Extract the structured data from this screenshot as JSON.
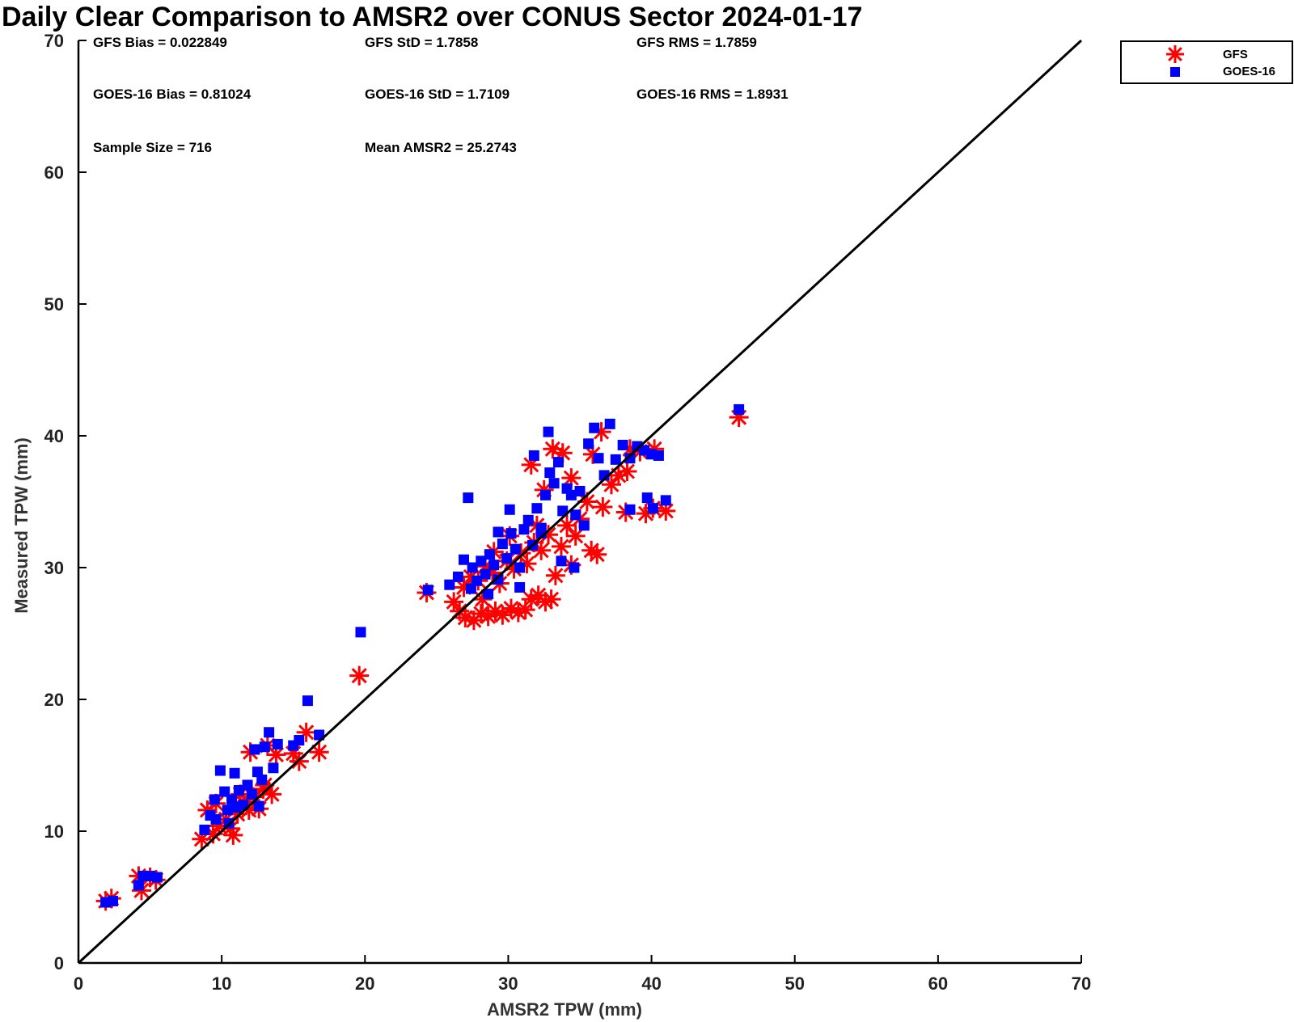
{
  "chart_data": {
    "type": "scatter",
    "title": "Daily Clear Comparison to AMSR2 over CONUS Sector 2024-01-17",
    "xlabel": "AMSR2 TPW (mm)",
    "ylabel": "Measured TPW (mm)",
    "xlim": [
      0,
      70
    ],
    "ylim": [
      0,
      70
    ],
    "xticks": [
      "0",
      "10",
      "20",
      "30",
      "40",
      "50",
      "60",
      "70"
    ],
    "yticks": [
      "0",
      "10",
      "20",
      "30",
      "40",
      "50",
      "60",
      "70"
    ],
    "reference_line": "y = x",
    "legend_position": "top-right outside",
    "stats": [
      "GFS Bias = 0.022849",
      "GFS StD = 1.7858",
      "GFS RMS = 1.7859",
      "GOES-16 Bias = 0.81024",
      "GOES-16 StD = 1.7109",
      "GOES-16 RMS = 1.8931",
      "Sample Size = 716",
      "Mean AMSR2 = 25.2743"
    ],
    "series": [
      {
        "name": "GFS",
        "marker": "asterisk",
        "color": "#ff0000",
        "points": [
          [
            1.9,
            4.7
          ],
          [
            2.3,
            4.9
          ],
          [
            4.2,
            6.6
          ],
          [
            4.4,
            5.5
          ],
          [
            5.0,
            6.5
          ],
          [
            5.4,
            6.3
          ],
          [
            8.6,
            9.4
          ],
          [
            9.0,
            11.6
          ],
          [
            9.4,
            9.8
          ],
          [
            9.8,
            10.4
          ],
          [
            10.3,
            10.9
          ],
          [
            10.8,
            9.7
          ],
          [
            11.1,
            11.3
          ],
          [
            11.5,
            12.2
          ],
          [
            11.9,
            11.6
          ],
          [
            12.2,
            12.6
          ],
          [
            12.6,
            11.7
          ],
          [
            12.9,
            13.2
          ],
          [
            13.5,
            12.8
          ],
          [
            12.0,
            16.0
          ],
          [
            13.2,
            16.5
          ],
          [
            13.8,
            15.8
          ],
          [
            15.0,
            15.9
          ],
          [
            15.4,
            15.3
          ],
          [
            15.9,
            17.5
          ],
          [
            16.8,
            16.0
          ],
          [
            9.6,
            12.1
          ],
          [
            10.6,
            10.2
          ],
          [
            11.3,
            12.8
          ],
          [
            13.0,
            13.5
          ],
          [
            19.6,
            21.8
          ],
          [
            24.3,
            28.1
          ],
          [
            26.2,
            27.4
          ],
          [
            26.6,
            26.7
          ],
          [
            27.0,
            26.2
          ],
          [
            27.6,
            26.0
          ],
          [
            28.1,
            26.5
          ],
          [
            28.6,
            26.3
          ],
          [
            29.1,
            26.7
          ],
          [
            29.6,
            26.4
          ],
          [
            30.2,
            26.9
          ],
          [
            30.7,
            26.6
          ],
          [
            31.2,
            26.8
          ],
          [
            31.6,
            27.6
          ],
          [
            32.1,
            27.9
          ],
          [
            32.6,
            27.4
          ],
          [
            33.0,
            27.6
          ],
          [
            26.9,
            28.5
          ],
          [
            27.4,
            29.3
          ],
          [
            27.9,
            29.0
          ],
          [
            28.4,
            30.1
          ],
          [
            28.9,
            29.6
          ],
          [
            29.4,
            28.8
          ],
          [
            29.9,
            30.5
          ],
          [
            30.4,
            29.9
          ],
          [
            30.9,
            31.1
          ],
          [
            31.3,
            30.3
          ],
          [
            31.8,
            31.9
          ],
          [
            32.3,
            31.3
          ],
          [
            32.8,
            32.5
          ],
          [
            33.3,
            29.4
          ],
          [
            33.7,
            31.6
          ],
          [
            34.1,
            33.2
          ],
          [
            34.4,
            30.2
          ],
          [
            34.7,
            32.4
          ],
          [
            35.0,
            33.7
          ],
          [
            35.5,
            35.0
          ],
          [
            35.8,
            31.3
          ],
          [
            36.2,
            31.0
          ],
          [
            36.6,
            34.6
          ],
          [
            37.2,
            36.3
          ],
          [
            37.7,
            37.0
          ],
          [
            38.3,
            37.3
          ],
          [
            31.6,
            37.8
          ],
          [
            32.5,
            35.9
          ],
          [
            33.1,
            39.0
          ],
          [
            33.8,
            38.7
          ],
          [
            34.4,
            36.8
          ],
          [
            35.9,
            38.6
          ],
          [
            36.5,
            40.3
          ],
          [
            38.5,
            39.0
          ],
          [
            39.2,
            38.8
          ],
          [
            40.2,
            39.0
          ],
          [
            38.2,
            34.2
          ],
          [
            39.6,
            34.1
          ],
          [
            40.1,
            34.5
          ],
          [
            41.0,
            34.3
          ],
          [
            32.0,
            33.2
          ],
          [
            30.1,
            32.4
          ],
          [
            29.0,
            31.2
          ],
          [
            28.2,
            27.6
          ],
          [
            46.1,
            41.4
          ]
        ]
      },
      {
        "name": "GOES-16",
        "marker": "square",
        "color": "#0000ff",
        "points": [
          [
            1.9,
            4.6
          ],
          [
            2.4,
            4.7
          ],
          [
            4.2,
            5.9
          ],
          [
            4.5,
            6.6
          ],
          [
            5.0,
            6.6
          ],
          [
            5.5,
            6.5
          ],
          [
            8.8,
            10.1
          ],
          [
            9.2,
            11.2
          ],
          [
            9.5,
            12.4
          ],
          [
            9.9,
            14.6
          ],
          [
            10.2,
            13.0
          ],
          [
            10.4,
            11.6
          ],
          [
            10.7,
            12.4
          ],
          [
            10.9,
            14.4
          ],
          [
            11.2,
            13.1
          ],
          [
            11.5,
            12.0
          ],
          [
            11.8,
            13.5
          ],
          [
            12.1,
            12.8
          ],
          [
            12.3,
            16.2
          ],
          [
            12.5,
            14.5
          ],
          [
            12.8,
            13.9
          ],
          [
            13.0,
            16.4
          ],
          [
            13.3,
            17.5
          ],
          [
            13.6,
            14.8
          ],
          [
            9.6,
            10.9
          ],
          [
            10.5,
            10.6
          ],
          [
            11.0,
            11.8
          ],
          [
            12.6,
            11.9
          ],
          [
            15.0,
            16.5
          ],
          [
            15.4,
            16.9
          ],
          [
            16.0,
            19.9
          ],
          [
            16.8,
            17.3
          ],
          [
            13.9,
            16.6
          ],
          [
            19.7,
            25.1
          ],
          [
            24.4,
            28.3
          ],
          [
            25.9,
            28.7
          ],
          [
            26.5,
            29.3
          ],
          [
            26.9,
            30.6
          ],
          [
            27.2,
            35.3
          ],
          [
            27.5,
            30.0
          ],
          [
            27.8,
            29.0
          ],
          [
            28.1,
            30.5
          ],
          [
            28.4,
            29.5
          ],
          [
            28.7,
            31.0
          ],
          [
            29.0,
            30.2
          ],
          [
            29.3,
            29.1
          ],
          [
            29.6,
            31.8
          ],
          [
            29.9,
            30.7
          ],
          [
            30.2,
            32.6
          ],
          [
            30.5,
            31.4
          ],
          [
            30.8,
            30.0
          ],
          [
            31.1,
            32.9
          ],
          [
            31.4,
            33.6
          ],
          [
            31.7,
            31.7
          ],
          [
            32.0,
            34.5
          ],
          [
            32.3,
            33.0
          ],
          [
            32.6,
            35.5
          ],
          [
            32.9,
            37.2
          ],
          [
            33.2,
            36.4
          ],
          [
            33.5,
            38.0
          ],
          [
            33.8,
            34.3
          ],
          [
            34.1,
            36.0
          ],
          [
            34.4,
            35.5
          ],
          [
            34.7,
            34.0
          ],
          [
            35.0,
            35.8
          ],
          [
            35.3,
            33.2
          ],
          [
            35.6,
            39.4
          ],
          [
            36.0,
            40.6
          ],
          [
            36.3,
            38.3
          ],
          [
            36.7,
            37.0
          ],
          [
            37.1,
            40.9
          ],
          [
            37.5,
            38.2
          ],
          [
            38.0,
            39.3
          ],
          [
            38.5,
            38.3
          ],
          [
            39.0,
            39.2
          ],
          [
            39.5,
            38.9
          ],
          [
            40.0,
            38.6
          ],
          [
            40.5,
            38.5
          ],
          [
            31.8,
            38.5
          ],
          [
            32.8,
            40.3
          ],
          [
            34.6,
            30.0
          ],
          [
            38.5,
            34.4
          ],
          [
            39.7,
            35.3
          ],
          [
            40.1,
            34.5
          ],
          [
            41.0,
            35.1
          ],
          [
            33.7,
            30.5
          ],
          [
            32.3,
            32.6
          ],
          [
            28.6,
            28.0
          ],
          [
            30.8,
            28.5
          ],
          [
            27.4,
            28.4
          ],
          [
            29.3,
            32.7
          ],
          [
            30.1,
            34.4
          ],
          [
            46.1,
            42.0
          ]
        ]
      }
    ]
  }
}
